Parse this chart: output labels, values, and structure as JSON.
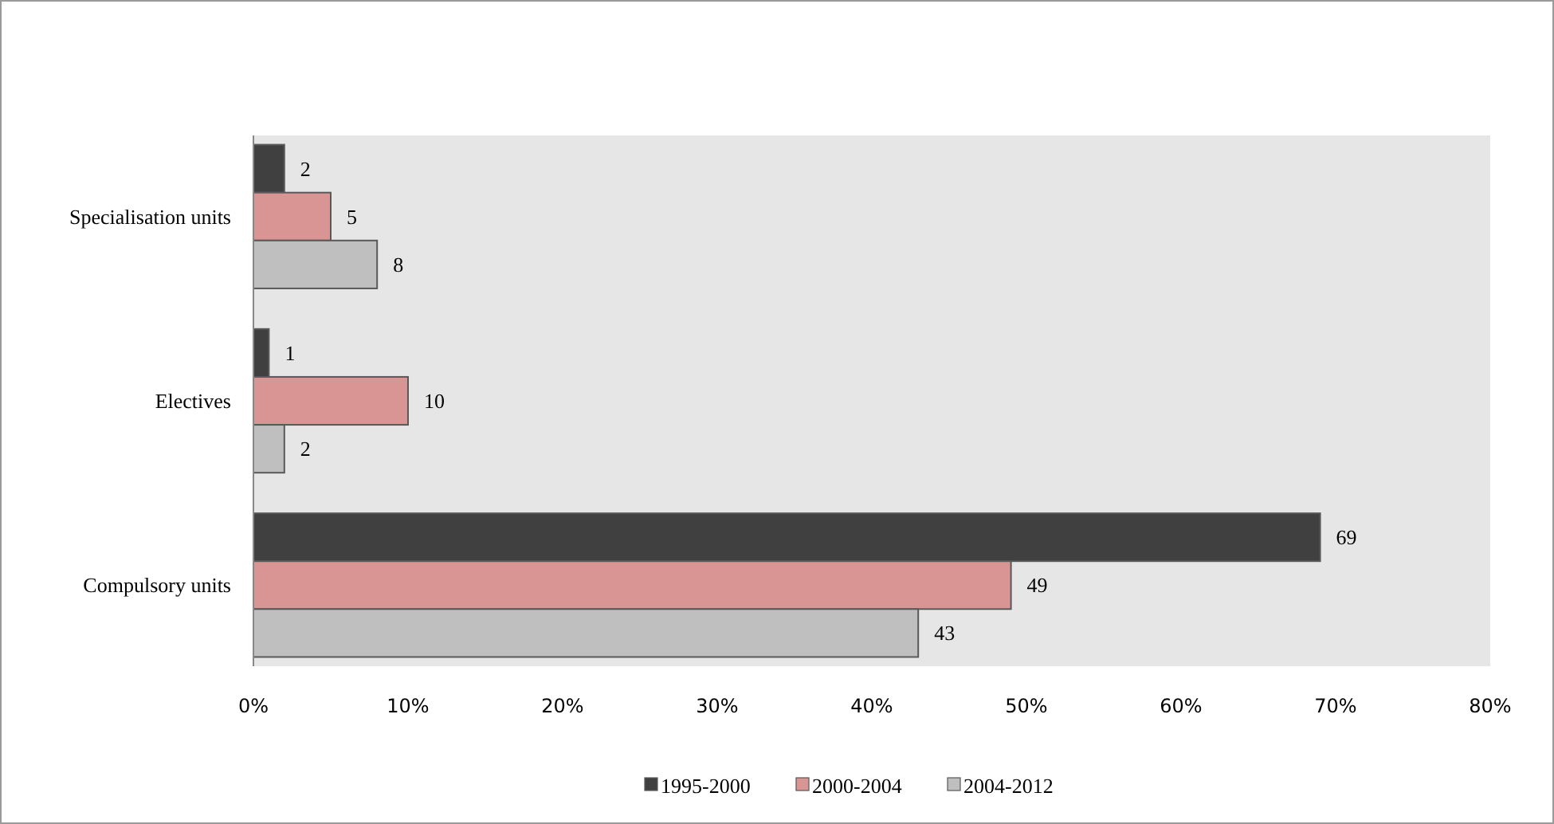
{
  "chart_data": {
    "type": "bar",
    "orientation": "horizontal",
    "categories": [
      "Specialisation units",
      "Electives",
      "Compulsory units"
    ],
    "series": [
      {
        "name": "1995-2000",
        "color": "#404040",
        "values": [
          2,
          1,
          69
        ]
      },
      {
        "name": "2000-2004",
        "color": "#d99594",
        "values": [
          5,
          10,
          49
        ]
      },
      {
        "name": "2004-2012",
        "color": "#bfbfbf",
        "values": [
          8,
          2,
          43
        ]
      }
    ],
    "xlim": [
      0,
      80
    ],
    "xticks": [
      {
        "value": 0,
        "label": "0%"
      },
      {
        "value": 10,
        "label": "10%"
      },
      {
        "value": 20,
        "label": "20%"
      },
      {
        "value": 30,
        "label": "30%"
      },
      {
        "value": 40,
        "label": "40%"
      },
      {
        "value": 50,
        "label": "50%"
      },
      {
        "value": 60,
        "label": "60%"
      },
      {
        "value": 70,
        "label": "70%"
      },
      {
        "value": 80,
        "label": "80%"
      }
    ],
    "data_labels": true,
    "legend": "bottom",
    "grid": false
  }
}
